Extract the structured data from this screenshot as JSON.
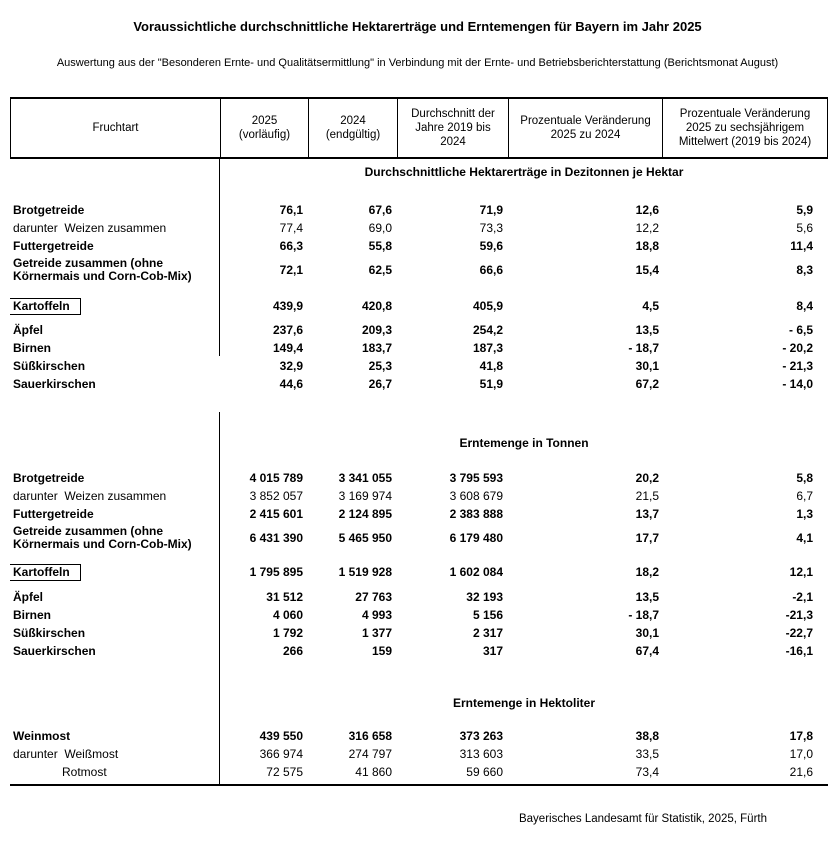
{
  "page": {
    "title": "Voraussichtliche durchschnittliche Hektarerträge und Erntemengen für Bayern im Jahr 2025",
    "subtitle": "Auswertung aus der \"Besonderen Ernte- und Qualitätsermittlung\" in Verbindung mit der Ernte- und Betriebsberichterstattung (Berichtsmonat August)",
    "footer": "Bayerisches Landesamt für Statistik, 2025, Fürth"
  },
  "table": {
    "columns": [
      "Fruchtart",
      "2025\n(vorläufig)",
      "2024\n(endgültig)",
      "Durchschnitt der\nJahre 2019 bis\n2024",
      "Prozentuale Veränderung\n2025 zu 2024",
      "Prozentuale Veränderung\n2025 zu sechsjährigem\nMittelwert (2019 bis 2024)"
    ],
    "sections": [
      {
        "heading": "Durchschnittliche Hektarerträge in Dezitonnen je Hektar",
        "rows": [
          {
            "label": "Brotgetreide",
            "bold": true,
            "values": [
              "76,1",
              "67,6",
              "71,9",
              "12,6",
              "5,9"
            ]
          },
          {
            "label": "darunter  Weizen zusammen",
            "bold": false,
            "values": [
              "77,4",
              "69,0",
              "73,3",
              "12,2",
              "5,6"
            ]
          },
          {
            "label": "Futtergetreide",
            "bold": true,
            "values": [
              "66,3",
              "55,8",
              "59,6",
              "18,8",
              "11,4"
            ]
          },
          {
            "label": "Getreide zusammen (ohne\nKörnermais und Corn-Cob-Mix)",
            "bold": true,
            "values": [
              "72,1",
              "62,5",
              "66,6",
              "15,4",
              "8,3"
            ]
          },
          {
            "label": "Kartoffeln",
            "bold": true,
            "boxed": true,
            "values": [
              "439,9",
              "420,8",
              "405,9",
              "4,5",
              "8,4"
            ]
          },
          {
            "label": "Äpfel",
            "bold": true,
            "values": [
              "237,6",
              "209,3",
              "254,2",
              "13,5",
              "- 6,5"
            ]
          },
          {
            "label": "Birnen",
            "bold": true,
            "values": [
              "149,4",
              "183,7",
              "187,3",
              "- 18,7",
              "- 20,2"
            ]
          },
          {
            "label": "Süßkirschen",
            "bold": true,
            "values": [
              "32,9",
              "25,3",
              "41,8",
              "30,1",
              "- 21,3"
            ]
          },
          {
            "label": "Sauerkirschen",
            "bold": true,
            "values": [
              "44,6",
              "26,7",
              "51,9",
              "67,2",
              "- 14,0"
            ]
          }
        ]
      },
      {
        "heading": "Erntemenge in Tonnen",
        "rows": [
          {
            "label": "Brotgetreide",
            "bold": true,
            "values": [
              "4 015 789",
              "3 341 055",
              "3 795 593",
              "20,2",
              "5,8"
            ]
          },
          {
            "label": "darunter  Weizen zusammen",
            "bold": false,
            "values": [
              "3 852 057",
              "3 169 974",
              "3 608 679",
              "21,5",
              "6,7"
            ]
          },
          {
            "label": "Futtergetreide",
            "bold": true,
            "values": [
              "2 415 601",
              "2 124 895",
              "2 383 888",
              "13,7",
              "1,3"
            ]
          },
          {
            "label": "Getreide zusammen (ohne\nKörnermais und Corn-Cob-Mix)",
            "bold": true,
            "values": [
              "6 431 390",
              "5 465 950",
              "6 179 480",
              "17,7",
              "4,1"
            ]
          },
          {
            "label": "Kartoffeln",
            "bold": true,
            "boxed": true,
            "values": [
              "1 795 895",
              "1 519 928",
              "1 602 084",
              "18,2",
              "12,1"
            ]
          },
          {
            "label": "Äpfel",
            "bold": true,
            "values": [
              "31 512",
              "27 763",
              "32 193",
              "13,5",
              "-2,1"
            ]
          },
          {
            "label": "Birnen",
            "bold": true,
            "values": [
              "4 060",
              "4 993",
              "5 156",
              "- 18,7",
              "-21,3"
            ]
          },
          {
            "label": "Süßkirschen",
            "bold": true,
            "values": [
              "1 792",
              "1 377",
              "2 317",
              "30,1",
              "-22,7"
            ]
          },
          {
            "label": "Sauerkirschen",
            "bold": true,
            "values": [
              "266",
              "159",
              "317",
              "67,4",
              "-16,1"
            ]
          }
        ]
      },
      {
        "heading": "Erntemenge in Hektoliter",
        "rows": [
          {
            "label": "Weinmost",
            "bold": true,
            "values": [
              "439 550",
              "316 658",
              "373 263",
              "38,8",
              "17,8"
            ]
          },
          {
            "label": "darunter  Weißmost",
            "bold": false,
            "values": [
              "366 974",
              "274 797",
              "313 603",
              "33,5",
              "17,0"
            ]
          },
          {
            "label": "Rotmost",
            "bold": false,
            "indent": true,
            "values": [
              "72 575",
              "41 860",
              "59 660",
              "73,4",
              "21,6"
            ]
          }
        ]
      }
    ]
  }
}
